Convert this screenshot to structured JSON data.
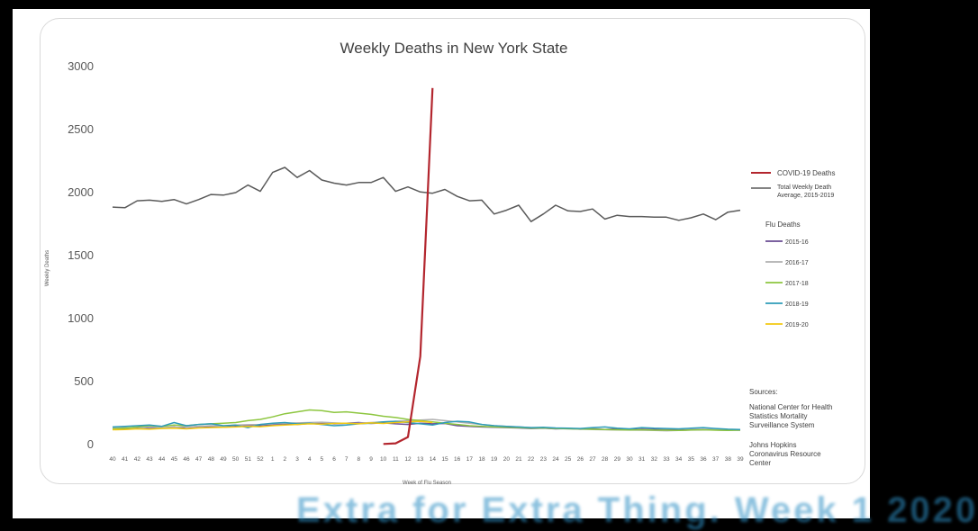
{
  "chart_data": {
    "type": "line",
    "title": "Weekly Deaths in New York State",
    "xlabel": "Week of Flu Season",
    "ylabel": "Weekly Deaths",
    "ylim": [
      0,
      3000
    ],
    "yticks": [
      0,
      500,
      1000,
      1500,
      2000,
      2500,
      3000
    ],
    "categories": [
      "40",
      "41",
      "42",
      "43",
      "44",
      "45",
      "46",
      "47",
      "48",
      "49",
      "50",
      "51",
      "52",
      "1",
      "2",
      "3",
      "4",
      "5",
      "6",
      "7",
      "8",
      "9",
      "10",
      "11",
      "12",
      "13",
      "14",
      "15",
      "16",
      "17",
      "18",
      "19",
      "20",
      "21",
      "22",
      "23",
      "24",
      "25",
      "26",
      "27",
      "28",
      "29",
      "30",
      "31",
      "32",
      "33",
      "34",
      "35",
      "36",
      "37",
      "38",
      "39"
    ],
    "grid": false,
    "legend_position": "right",
    "series": [
      {
        "name": "COVID-19 Deaths",
        "color": "#b3262e",
        "values": [
          null,
          null,
          null,
          null,
          null,
          null,
          null,
          null,
          null,
          null,
          null,
          null,
          null,
          null,
          null,
          null,
          null,
          null,
          null,
          null,
          null,
          null,
          5,
          10,
          60,
          700,
          2830,
          null,
          null,
          null,
          null,
          null,
          null,
          null,
          null,
          null,
          null,
          null,
          null,
          null,
          null,
          null,
          null,
          null,
          null,
          null,
          null,
          null,
          null,
          null,
          null,
          null
        ]
      },
      {
        "name": "Total Weekly Death Average, 2015-2019",
        "color": "#5a5a5a",
        "values": [
          1885,
          1880,
          1935,
          1940,
          1930,
          1945,
          1910,
          1945,
          1985,
          1980,
          2000,
          2060,
          2010,
          2160,
          2200,
          2120,
          2175,
          2100,
          2075,
          2060,
          2080,
          2080,
          2120,
          2010,
          2045,
          2005,
          1995,
          2025,
          1970,
          1935,
          1940,
          1830,
          1860,
          1900,
          1770,
          1830,
          1900,
          1855,
          1850,
          1870,
          1790,
          1820,
          1810,
          1810,
          1805,
          1805,
          1780,
          1800,
          1830,
          1785,
          1845,
          1860
        ]
      },
      {
        "name": "2015-16",
        "color": "#6a4c93",
        "values": [
          120,
          125,
          135,
          128,
          132,
          140,
          128,
          135,
          140,
          138,
          145,
          150,
          148,
          155,
          165,
          160,
          168,
          172,
          165,
          170,
          175,
          168,
          172,
          165,
          160,
          170,
          165,
          168,
          150,
          145,
          140,
          138,
          135,
          132,
          128,
          130,
          125,
          128,
          122,
          126,
          120,
          125,
          118,
          122,
          120,
          118,
          115,
          118,
          120,
          116,
          114,
          118
        ]
      },
      {
        "name": "2016-17",
        "color": "#b0b0b0",
        "values": [
          130,
          135,
          128,
          140,
          135,
          138,
          142,
          145,
          150,
          148,
          155,
          158,
          160,
          165,
          170,
          172,
          175,
          178,
          172,
          168,
          170,
          175,
          180,
          185,
          190,
          195,
          200,
          190,
          180,
          170,
          160,
          150,
          145,
          140,
          135,
          132,
          128,
          125,
          122,
          120,
          118,
          116,
          115,
          114,
          112,
          110,
          112,
          115,
          116,
          118,
          115,
          112
        ]
      },
      {
        "name": "2017-18",
        "color": "#8dc63f",
        "values": [
          125,
          130,
          140,
          150,
          145,
          155,
          150,
          160,
          165,
          170,
          175,
          190,
          200,
          220,
          245,
          260,
          275,
          270,
          255,
          260,
          250,
          240,
          225,
          215,
          200,
          190,
          180,
          170,
          160,
          150,
          145,
          140,
          138,
          135,
          130,
          132,
          128,
          126,
          124,
          122,
          120,
          118,
          116,
          118,
          115,
          114,
          112,
          116,
          118,
          114,
          112,
          115
        ]
      },
      {
        "name": "2018-19",
        "color": "#2e9bb8",
        "values": [
          140,
          145,
          150,
          155,
          145,
          175,
          150,
          160,
          165,
          150,
          155,
          135,
          160,
          170,
          175,
          165,
          170,
          160,
          150,
          155,
          165,
          170,
          180,
          185,
          175,
          165,
          155,
          175,
          185,
          180,
          160,
          150,
          145,
          140,
          135,
          138,
          132,
          130,
          128,
          135,
          140,
          130,
          125,
          135,
          130,
          128,
          125,
          130,
          135,
          128,
          122,
          120
        ]
      },
      {
        "name": "2019-20",
        "color": "#f2c811",
        "values": [
          118,
          120,
          125,
          122,
          128,
          130,
          125,
          132,
          135,
          138,
          140,
          145,
          142,
          150,
          155,
          160,
          165,
          162,
          168,
          170,
          165,
          172,
          168,
          175,
          180,
          185,
          175,
          null,
          null,
          null,
          null,
          null,
          null,
          null,
          null,
          null,
          null,
          null,
          null,
          null,
          null,
          null,
          null,
          null,
          null,
          null,
          null,
          null,
          null,
          null,
          null,
          null
        ]
      }
    ],
    "legend_group_title": "Flu Deaths",
    "sources_heading": "Sources:",
    "sources": [
      "National Center for Health Statistics Mortality Surveillance System",
      "Johns Hopkins Coronavirus Resource Center"
    ]
  },
  "bottom_text": "Extra for Extra Thing. Week 1 2020"
}
